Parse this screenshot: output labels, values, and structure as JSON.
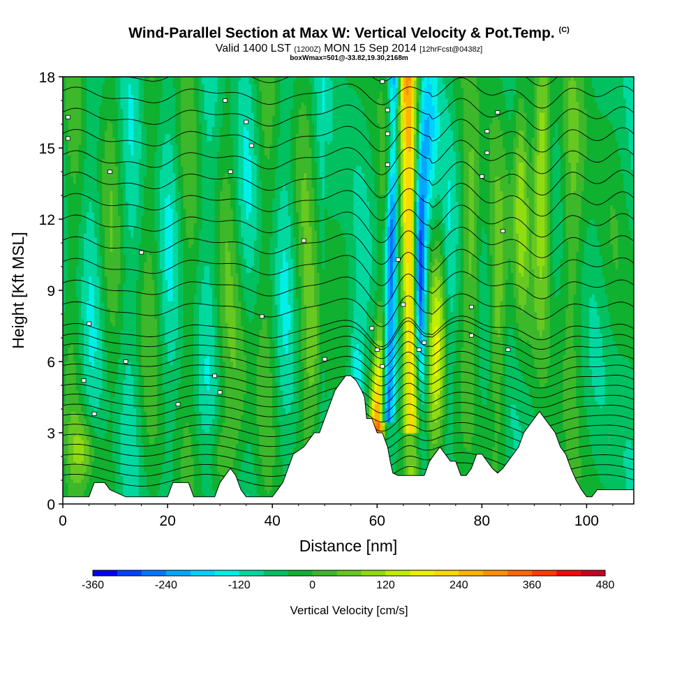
{
  "chart_data": {
    "type": "heatmap",
    "title": "Wind-Parallel Section at Max W: Vertical Velocity & Pot.Temp.",
    "title_mark": "(C)",
    "subtitle_main": "Valid 1400 LST",
    "subtitle_utc": "(1200Z)",
    "subtitle_date": "MON 15 Sep 2014",
    "subtitle_fcst": "[12hrFcst@0438z]",
    "subtitle_box": "boxWmax=501@-33.82,19.30,2168m",
    "xlabel": "Distance [nm]",
    "ylabel": "Height [Kft MSL]",
    "xlim": [
      0,
      109
    ],
    "ylim": [
      0,
      18
    ],
    "x_ticks": [
      "0",
      "20",
      "40",
      "60",
      "80",
      "100"
    ],
    "y_ticks": [
      "0",
      "3",
      "6",
      "9",
      "12",
      "15",
      "18"
    ],
    "grid": false,
    "colorbar": {
      "title": "Vertical Velocity [cm/s]",
      "labels": [
        "-360",
        "-240",
        "-120",
        "0",
        "120",
        "240",
        "360",
        "480"
      ],
      "levels": [
        -360,
        -320,
        -280,
        -240,
        -200,
        -160,
        -120,
        -80,
        -40,
        0,
        40,
        80,
        120,
        160,
        200,
        240,
        280,
        320,
        360,
        400,
        440,
        480
      ],
      "colors": [
        "#0000ee",
        "#0044ff",
        "#0077ff",
        "#00a8ff",
        "#00d2ff",
        "#00f0e8",
        "#00d8a0",
        "#00c060",
        "#10b030",
        "#3cb82a",
        "#66c820",
        "#90dc10",
        "#c0ee00",
        "#eef000",
        "#ffd800",
        "#ffb400",
        "#ff9000",
        "#ff6800",
        "#ff3c00",
        "#ee0c0c",
        "#c80020"
      ]
    },
    "terrain_profile": [
      [
        0,
        0.3
      ],
      [
        5,
        0.3
      ],
      [
        6,
        0.9
      ],
      [
        8,
        0.9
      ],
      [
        9,
        0.6
      ],
      [
        12,
        0.3
      ],
      [
        20,
        0.3
      ],
      [
        21,
        0.9
      ],
      [
        24,
        0.9
      ],
      [
        25,
        0.3
      ],
      [
        29,
        0.3
      ],
      [
        30,
        0.9
      ],
      [
        31,
        1.2
      ],
      [
        32,
        1.5
      ],
      [
        33,
        1.2
      ],
      [
        34,
        0.6
      ],
      [
        35,
        0.3
      ],
      [
        40,
        0.3
      ],
      [
        41,
        0.6
      ],
      [
        42,
        0.9
      ],
      [
        43,
        1.5
      ],
      [
        44,
        2.1
      ],
      [
        46,
        2.4
      ],
      [
        47,
        2.7
      ],
      [
        48,
        3.0
      ],
      [
        49,
        3.0
      ],
      [
        50,
        3.6
      ],
      [
        51,
        4.2
      ],
      [
        52,
        4.8
      ],
      [
        53,
        5.1
      ],
      [
        54,
        5.4
      ],
      [
        55,
        5.4
      ],
      [
        56,
        5.2
      ],
      [
        57,
        4.8
      ],
      [
        57.6,
        4.5
      ],
      [
        58,
        3.6
      ],
      [
        59,
        3.6
      ],
      [
        60,
        3.0
      ],
      [
        61,
        3.0
      ],
      [
        62,
        2.4
      ],
      [
        62.5,
        1.8
      ],
      [
        63,
        1.3
      ],
      [
        64,
        1.2
      ],
      [
        69,
        1.2
      ],
      [
        70,
        1.8
      ],
      [
        71,
        2.1
      ],
      [
        72,
        2.4
      ],
      [
        73,
        2.1
      ],
      [
        74,
        1.8
      ],
      [
        75,
        1.8
      ],
      [
        76,
        1.2
      ],
      [
        77,
        1.2
      ],
      [
        78,
        1.5
      ],
      [
        79,
        2.1
      ],
      [
        80,
        2.1
      ],
      [
        81,
        1.8
      ],
      [
        82,
        1.5
      ],
      [
        83,
        1.3
      ],
      [
        84,
        1.5
      ],
      [
        85,
        1.8
      ],
      [
        86,
        2.1
      ],
      [
        87,
        2.4
      ],
      [
        88,
        3.0
      ],
      [
        89,
        3.3
      ],
      [
        90,
        3.6
      ],
      [
        91,
        3.9
      ],
      [
        92,
        3.6
      ],
      [
        93,
        3.3
      ],
      [
        94,
        3.0
      ],
      [
        95,
        2.4
      ],
      [
        96,
        2.1
      ],
      [
        97,
        1.5
      ],
      [
        98,
        1.0
      ],
      [
        99,
        0.6
      ],
      [
        100,
        0.3
      ],
      [
        101,
        0.3
      ],
      [
        102,
        0.6
      ],
      [
        103,
        0.6
      ],
      [
        109,
        0.6
      ]
    ],
    "theta_labels": [
      {
        "x": 1,
        "y": 16.3
      },
      {
        "x": 1,
        "y": 15.4
      },
      {
        "x": 31,
        "y": 17.0
      },
      {
        "x": 35,
        "y": 16.1
      },
      {
        "x": 36,
        "y": 15.1
      },
      {
        "x": 9,
        "y": 14.0
      },
      {
        "x": 32,
        "y": 14.0
      },
      {
        "x": 15,
        "y": 10.6
      },
      {
        "x": 46,
        "y": 11.1
      },
      {
        "x": 5,
        "y": 7.6
      },
      {
        "x": 38,
        "y": 7.9
      },
      {
        "x": 12,
        "y": 6.0
      },
      {
        "x": 4,
        "y": 5.2
      },
      {
        "x": 29,
        "y": 5.4
      },
      {
        "x": 30,
        "y": 4.7
      },
      {
        "x": 22,
        "y": 4.2
      },
      {
        "x": 6,
        "y": 3.8
      },
      {
        "x": 50,
        "y": 6.1
      },
      {
        "x": 61,
        "y": 17.8
      },
      {
        "x": 62,
        "y": 16.6
      },
      {
        "x": 62,
        "y": 15.6
      },
      {
        "x": 62,
        "y": 14.3
      },
      {
        "x": 64,
        "y": 10.3
      },
      {
        "x": 65,
        "y": 8.4
      },
      {
        "x": 59,
        "y": 7.4
      },
      {
        "x": 60,
        "y": 6.5
      },
      {
        "x": 61,
        "y": 5.8
      },
      {
        "x": 69,
        "y": 6.8
      },
      {
        "x": 68,
        "y": 6.5
      },
      {
        "x": 78,
        "y": 8.3
      },
      {
        "x": 78,
        "y": 7.1
      },
      {
        "x": 83,
        "y": 16.5
      },
      {
        "x": 81,
        "y": 15.7
      },
      {
        "x": 81,
        "y": 14.8
      },
      {
        "x": 80,
        "y": 13.8
      },
      {
        "x": 84,
        "y": 11.5
      },
      {
        "x": 85,
        "y": 6.5
      }
    ]
  }
}
